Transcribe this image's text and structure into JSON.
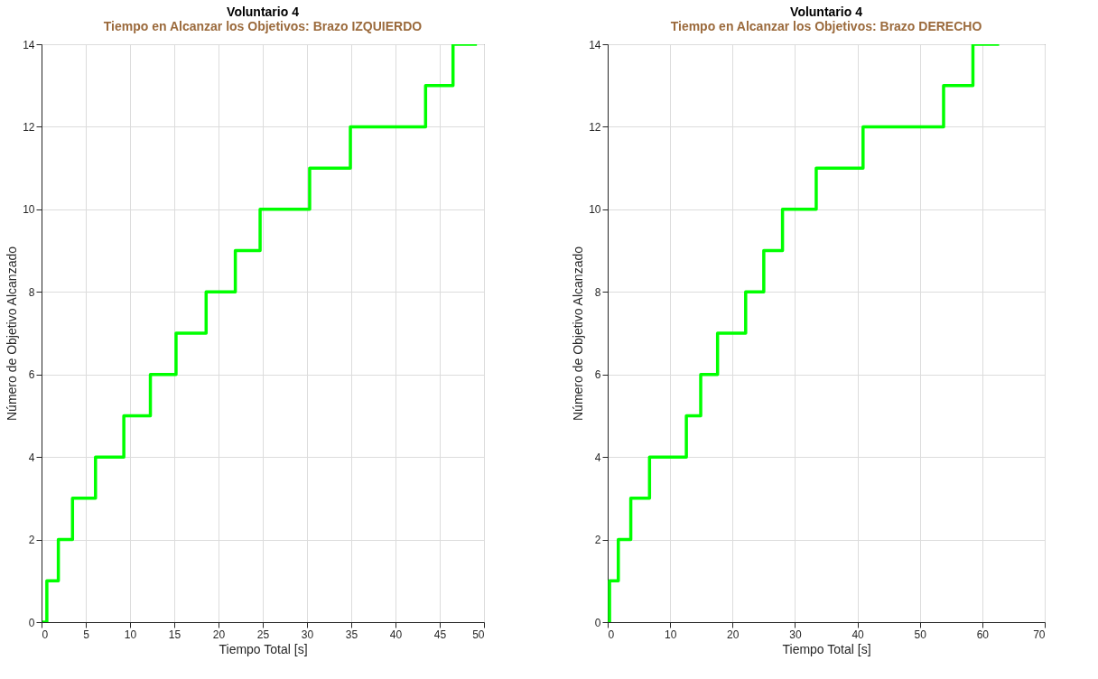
{
  "chart_data": [
    {
      "type": "step",
      "title": "Voluntario 4",
      "subtitle": "Tiempo en Alcanzar los Objetivos: Brazo IZQUIERDO",
      "xlabel": "Tiempo Total [s]",
      "ylabel": "Número de Objetivo Alcanzado",
      "x": [
        0.1,
        0.6,
        1.9,
        3.5,
        6.1,
        9.3,
        12.3,
        15.2,
        18.6,
        21.9,
        24.7,
        30.3,
        34.9,
        43.4,
        46.5,
        49.2
      ],
      "series": [
        {
          "color": "#00ff00",
          "values": [
            0,
            1,
            2,
            3,
            4,
            5,
            6,
            7,
            8,
            9,
            10,
            11,
            12,
            13,
            14,
            14
          ]
        }
      ],
      "xlim": [
        0,
        50
      ],
      "xticks": [
        0,
        5,
        10,
        15,
        20,
        25,
        30,
        35,
        40,
        45,
        50
      ],
      "ylim": [
        0,
        14
      ],
      "yticks": [
        0,
        2,
        4,
        6,
        8,
        10,
        12,
        14
      ],
      "grid": true
    },
    {
      "type": "step",
      "title": "Voluntario 4",
      "subtitle": "Tiempo en Alcanzar los Objetivos: Brazo DERECHO",
      "xlabel": "Tiempo Total [s]",
      "ylabel": "Número de Objetivo Alcanzado",
      "x": [
        0.3,
        0.3,
        1.7,
        3.7,
        6.7,
        12.6,
        14.9,
        17.6,
        22.1,
        25.0,
        28.0,
        33.4,
        40.9,
        53.8,
        58.5,
        62.7
      ],
      "series": [
        {
          "color": "#00ff00",
          "values": [
            0,
            1,
            2,
            3,
            4,
            5,
            6,
            7,
            8,
            9,
            10,
            11,
            12,
            13,
            14,
            14
          ]
        }
      ],
      "xlim": [
        0,
        70
      ],
      "xticks": [
        0,
        10,
        20,
        30,
        40,
        50,
        60,
        70
      ],
      "ylim": [
        0,
        14
      ],
      "yticks": [
        0,
        2,
        4,
        6,
        8,
        10,
        12,
        14
      ],
      "grid": true
    }
  ]
}
